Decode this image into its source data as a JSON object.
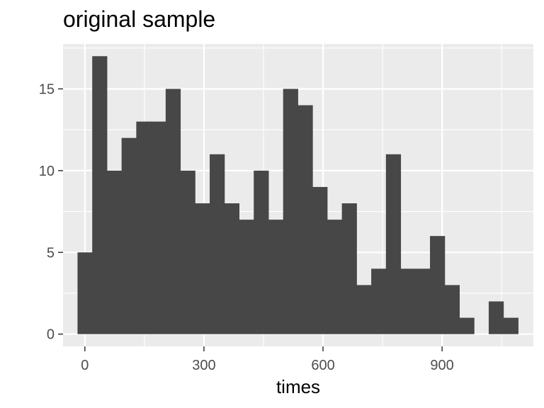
{
  "chart_data": {
    "type": "bar",
    "title": "original sample",
    "xlabel": "times",
    "ylabel": "",
    "bin_width": 37,
    "x": [
      0,
      37,
      74,
      111,
      148,
      185,
      222,
      259,
      296,
      333,
      370,
      407,
      444,
      481,
      518,
      555,
      592,
      629,
      666,
      703,
      740,
      777,
      814,
      851,
      888,
      925,
      962,
      999,
      1036,
      1073
    ],
    "values": [
      5,
      17,
      10,
      12,
      13,
      13,
      15,
      10,
      8,
      11,
      8,
      7,
      10,
      7,
      15,
      14,
      9,
      7,
      8,
      3,
      4,
      11,
      4,
      4,
      6,
      3,
      1,
      0,
      2,
      1
    ],
    "xlim": [
      -55,
      1130
    ],
    "ylim": [
      -0.75,
      17.75
    ],
    "xticks": [
      0,
      300,
      600,
      900
    ],
    "xtick_labels": [
      "0",
      "300",
      "600",
      "900"
    ],
    "yticks": [
      0,
      5,
      10,
      15
    ],
    "ytick_labels": [
      "0",
      "5",
      "10",
      "15"
    ],
    "bar_color": "#474747",
    "panel_color": "#ebebeb",
    "grid_color": "#ffffff",
    "grid": true,
    "legend": "none"
  }
}
